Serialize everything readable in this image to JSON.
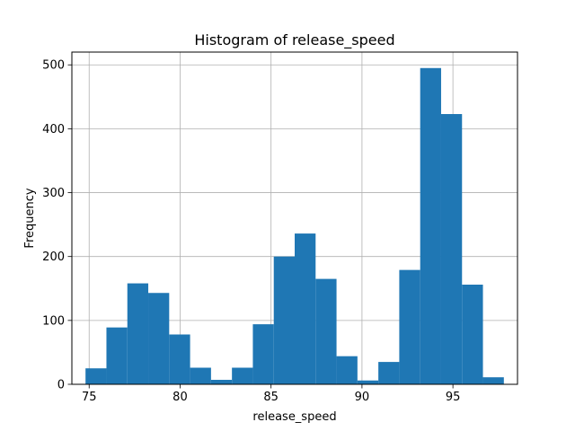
{
  "chart_data": {
    "type": "bar",
    "title": "Histogram of release_speed",
    "xlabel": "release_speed",
    "ylabel": "Frequency",
    "bin_edges": [
      74.8,
      75.95,
      77.1,
      78.25,
      79.4,
      80.55,
      81.7,
      82.85,
      84.0,
      85.15,
      86.3,
      87.45,
      88.6,
      89.75,
      90.9,
      92.05,
      93.2,
      94.35,
      95.5,
      96.65,
      97.8
    ],
    "values": [
      25,
      89,
      158,
      143,
      78,
      26,
      7,
      26,
      94,
      200,
      236,
      165,
      44,
      6,
      35,
      179,
      495,
      423,
      156,
      11
    ],
    "xlim": [
      74.05,
      98.55
    ],
    "ylim": [
      0,
      520
    ],
    "x_ticks": [
      75,
      80,
      85,
      90,
      95
    ],
    "y_ticks": [
      0,
      100,
      200,
      300,
      400,
      500
    ],
    "grid": true,
    "bar_color": "#1f77b4"
  }
}
